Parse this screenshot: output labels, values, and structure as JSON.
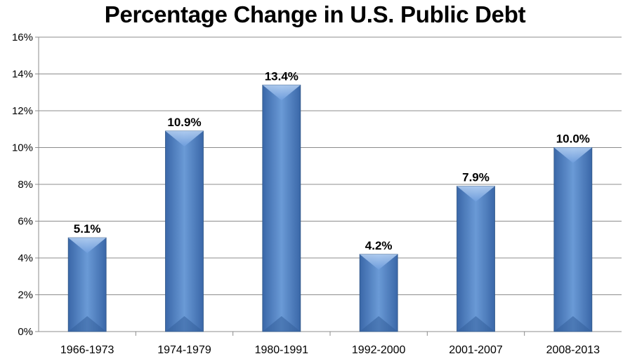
{
  "chart_data": {
    "type": "bar",
    "title": "Percentage Change in U.S. Public Debt",
    "xlabel": "",
    "ylabel": "",
    "categories": [
      "1966-1973",
      "1974-1979",
      "1980-1991",
      "1992-2000",
      "2001-2007",
      "2008-2013"
    ],
    "values": [
      5.1,
      10.9,
      13.4,
      4.2,
      7.9,
      10.0
    ],
    "data_labels": [
      "5.1%",
      "10.9%",
      "13.4%",
      "4.2%",
      "7.9%",
      "10.0%"
    ],
    "ylim": [
      0,
      16
    ],
    "yticks": [
      0,
      2,
      4,
      6,
      8,
      10,
      12,
      14,
      16
    ],
    "ytick_labels": [
      "0%",
      "2%",
      "4%",
      "6%",
      "8%",
      "10%",
      "12%",
      "14%",
      "16%"
    ],
    "grid": true,
    "legend": "none",
    "bar_color": "#4f81bd"
  }
}
